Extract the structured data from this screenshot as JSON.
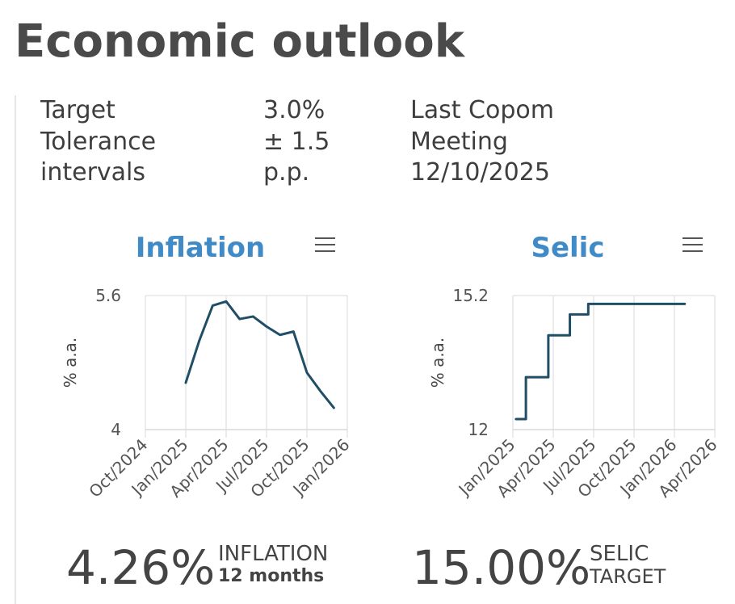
{
  "header": {
    "title": "Economic outlook"
  },
  "info": {
    "labels": [
      "Target",
      "Tolerance",
      "intervals"
    ],
    "values": [
      "3.0%",
      "± 1.5",
      "p.p."
    ],
    "meeting": [
      "Last Copom",
      "Meeting",
      "12/10/2025"
    ]
  },
  "colors": {
    "title_blue": "#3f8ac7",
    "line": "#1f4e66",
    "grid": "#e6e6e6"
  },
  "chart_data": [
    {
      "type": "line",
      "title": "Inflation",
      "ylabel": "% a.a.",
      "ylim": [
        4,
        5.6
      ],
      "yticks": [
        "5.6",
        "4"
      ],
      "xlim": [
        "2024-10-01",
        "2026-01-01"
      ],
      "xticks": [
        "Oct/2024",
        "Jan/2025",
        "Apr/2025",
        "Jul/2025",
        "Oct/2025",
        "Jan/2026"
      ],
      "grid": true,
      "menu_icon": "hamburger-menu-icon",
      "series": [
        {
          "x": [
            "2025-01-01",
            "2025-02-01",
            "2025-03-01",
            "2025-04-01",
            "2025-05-01",
            "2025-06-01",
            "2025-07-01",
            "2025-08-01",
            "2025-09-01",
            "2025-10-01",
            "2025-11-01",
            "2025-12-01"
          ],
          "y": [
            4.56,
            5.06,
            5.48,
            5.53,
            5.32,
            5.35,
            5.23,
            5.13,
            5.17,
            4.68,
            4.46,
            4.26
          ]
        }
      ]
    },
    {
      "type": "line",
      "step": true,
      "title": "Selic",
      "ylabel": "% a.a.",
      "ylim": [
        12,
        15.2
      ],
      "yticks": [
        "15.2",
        "12"
      ],
      "xlim": [
        "2025-01-01",
        "2026-04-01"
      ],
      "xticks": [
        "Jan/2025",
        "Apr/2025",
        "Jul/2025",
        "Oct/2025",
        "Jan/2026",
        "Apr/2026"
      ],
      "grid": true,
      "menu_icon": "hamburger-menu-icon",
      "series": [
        {
          "x": [
            "2025-01-08",
            "2025-01-30",
            "2025-03-20",
            "2025-05-08",
            "2025-06-19",
            "2026-01-24"
          ],
          "y": [
            12.25,
            13.25,
            14.25,
            14.75,
            15.0,
            15.0
          ]
        }
      ]
    }
  ],
  "kpis": [
    {
      "value": "4.26%",
      "label_line1": "INFLATION",
      "label_line2": "12 months"
    },
    {
      "value": "15.00%",
      "label_line1": "SELIC",
      "label_line2": "TARGET"
    }
  ]
}
